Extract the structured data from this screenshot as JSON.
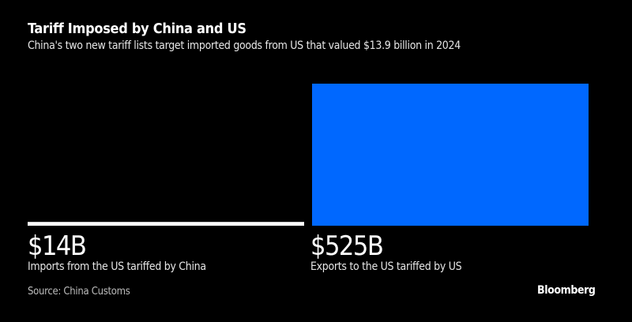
{
  "chart_data": {
    "type": "bar",
    "title": "Tariff Imposed by China and US",
    "subtitle": "China's two new tariff lists target imported goods from US that valued $13.9 billion in 2024",
    "categories": [
      "Imports from the US tariffed by China",
      "Exports to the US tariffed by US"
    ],
    "values": [
      14,
      525
    ],
    "value_labels": [
      "$14B",
      "$525B"
    ],
    "unit": "billion USD",
    "colors": [
      "#ffffff",
      "#0068ff"
    ],
    "xlabel": "",
    "ylabel": "",
    "ylim": [
      0,
      525
    ],
    "grid": false
  },
  "footer": {
    "source": "Source: China Customs",
    "brand": "Bloomberg"
  },
  "colors": {
    "background": "#000000"
  }
}
